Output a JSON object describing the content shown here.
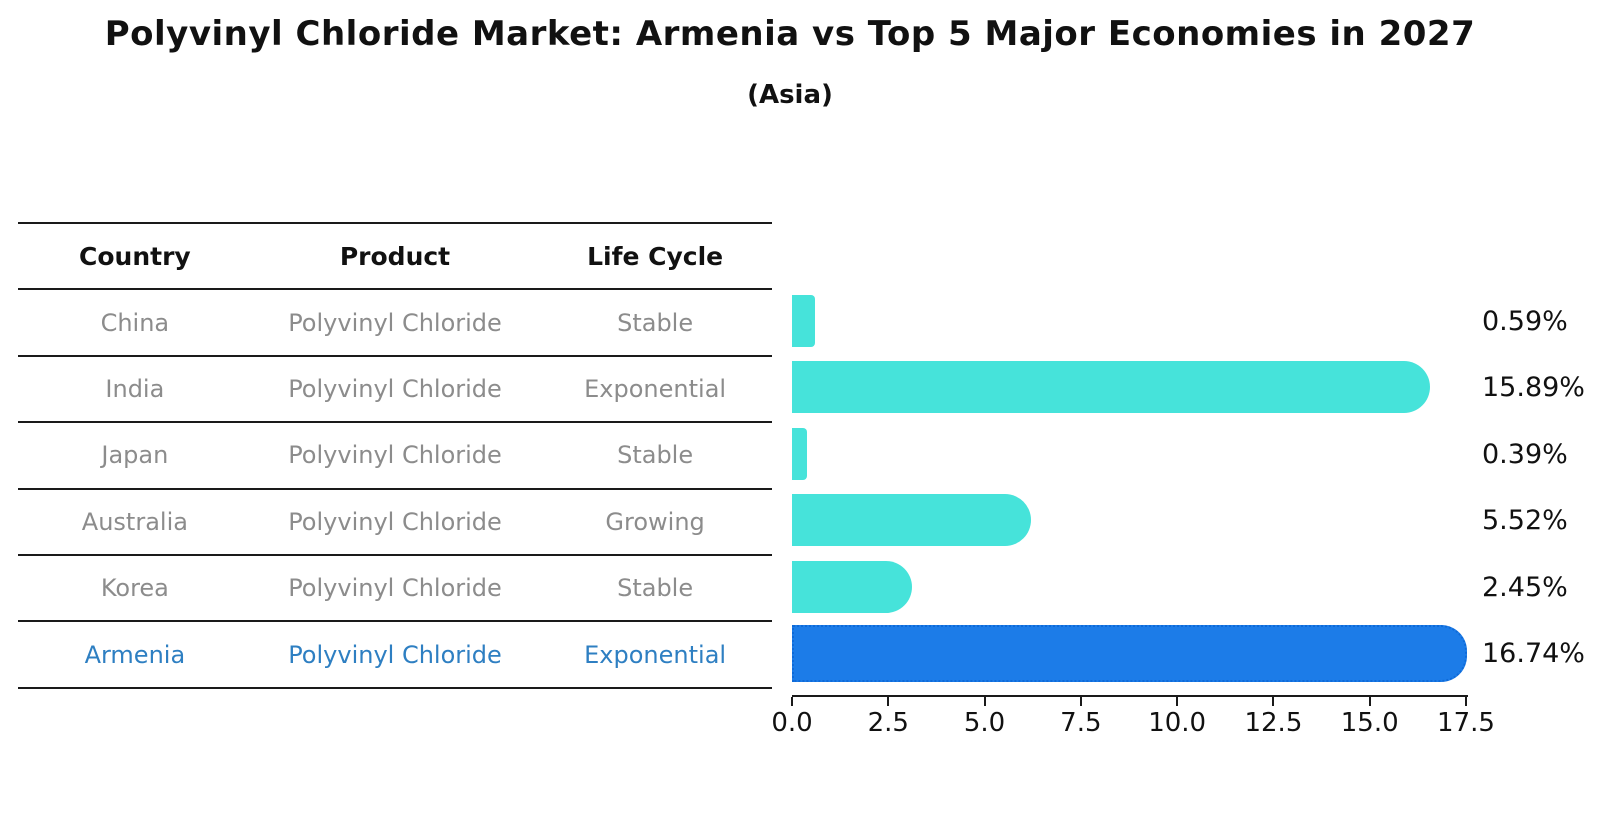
{
  "title": "Polyvinyl Chloride Market: Armenia vs Top 5 Major Economies in 2027",
  "subtitle": "(Asia)",
  "colors": {
    "bar": "#46E3DA",
    "highlight_bar": "#1C7CE8",
    "highlight_border": "#0E6AD8",
    "text": "#111111",
    "muted_text": "#8C8C8C",
    "highlight_text": "#2E7FC2",
    "line": "#1A1A1A"
  },
  "table": {
    "headers": [
      "Country",
      "Product",
      "Life Cycle"
    ],
    "rows": [
      {
        "country": "China",
        "product": "Polyvinyl Chloride",
        "life_cycle": "Stable",
        "highlight": false
      },
      {
        "country": "India",
        "product": "Polyvinyl Chloride",
        "life_cycle": "Exponential",
        "highlight": false
      },
      {
        "country": "Japan",
        "product": "Polyvinyl Chloride",
        "life_cycle": "Stable",
        "highlight": false
      },
      {
        "country": "Australia",
        "product": "Polyvinyl Chloride",
        "life_cycle": "Growing",
        "highlight": false
      },
      {
        "country": "Korea",
        "product": "Polyvinyl Chloride",
        "life_cycle": "Stable",
        "highlight": false
      },
      {
        "country": "Armenia",
        "product": "Polyvinyl Chloride",
        "life_cycle": "Exponential",
        "highlight": true
      }
    ]
  },
  "chart_data": {
    "type": "bar",
    "orientation": "horizontal",
    "title": "Polyvinyl Chloride Market: Armenia vs Top 5 Major Economies in 2027",
    "subtitle": "(Asia)",
    "categories": [
      "China",
      "India",
      "Japan",
      "Australia",
      "Korea",
      "Armenia"
    ],
    "values": [
      0.59,
      15.89,
      0.39,
      5.52,
      2.45,
      16.74
    ],
    "value_labels": [
      "0.59%",
      "15.89%",
      "0.39%",
      "5.52%",
      "2.45%",
      "16.74%"
    ],
    "highlight_index": 5,
    "xlim": [
      0,
      17.5
    ],
    "x_ticks": [
      "0.0",
      "2.5",
      "5.0",
      "7.5",
      "10.0",
      "12.5",
      "15.0",
      "17.5"
    ],
    "grid": false,
    "legend": false
  }
}
